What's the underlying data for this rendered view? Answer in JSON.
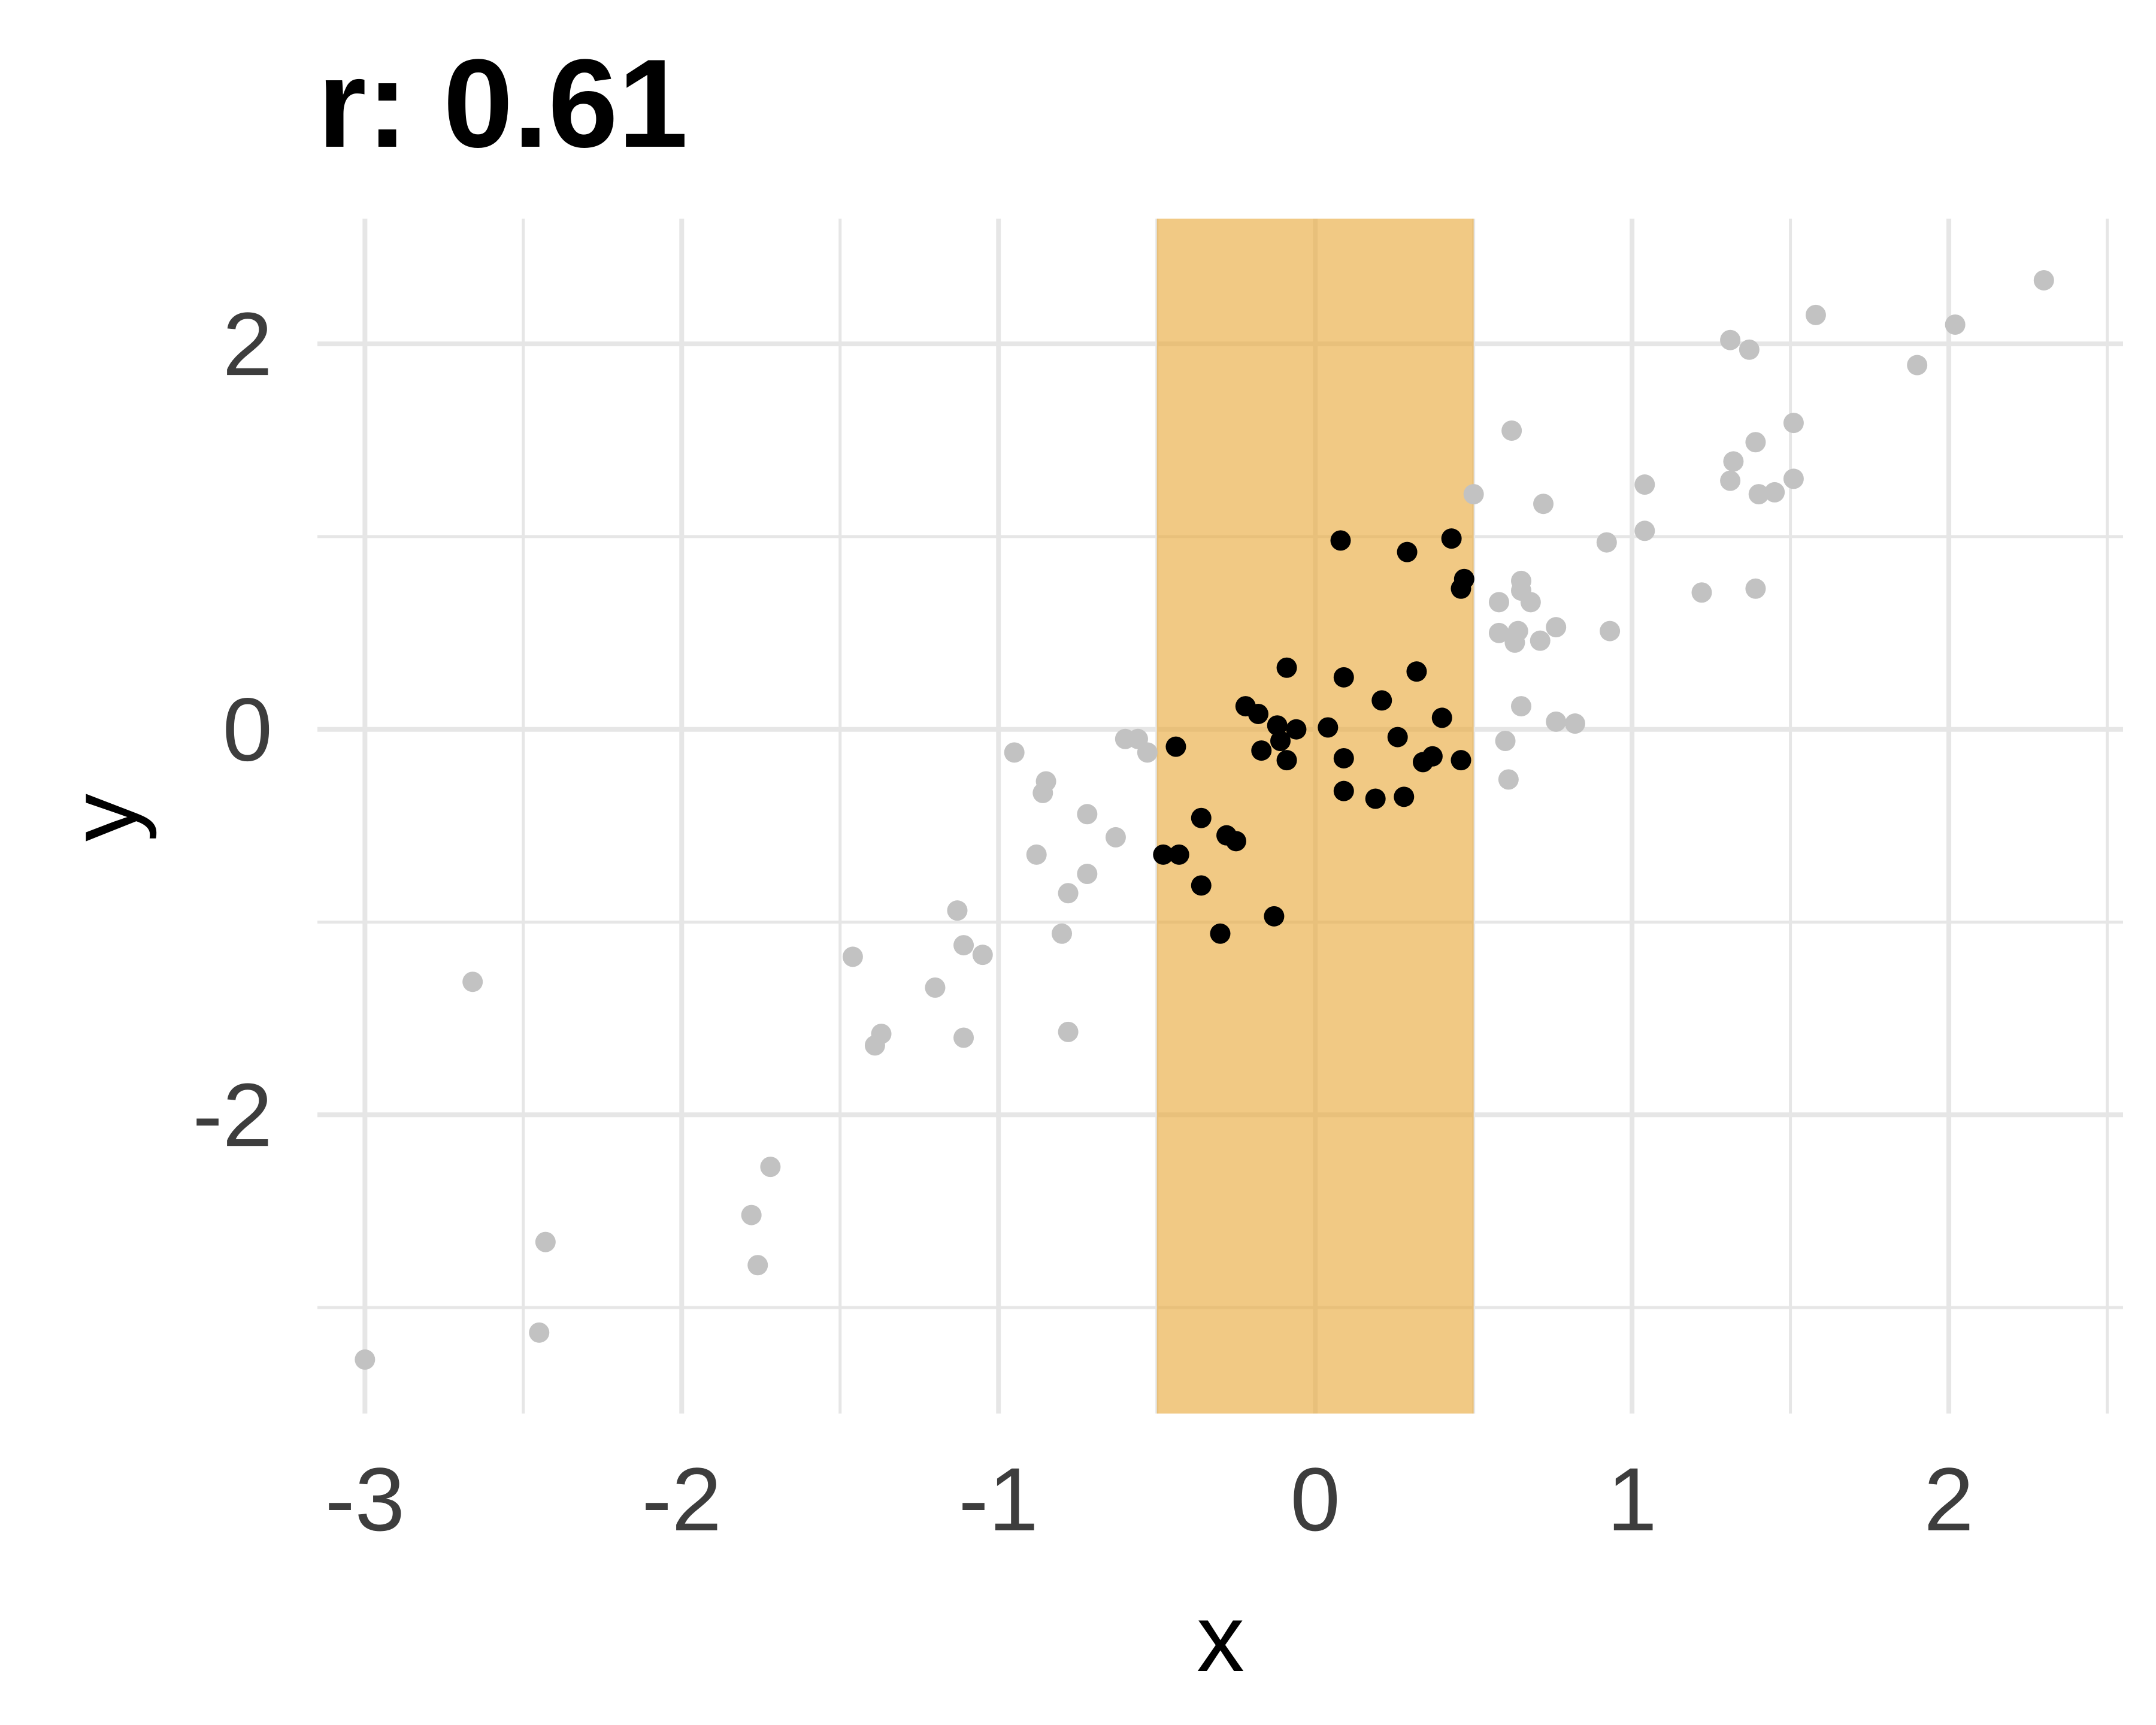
{
  "chart_data": {
    "type": "scatter",
    "title": "r: 0.61",
    "xlabel": "x",
    "ylabel": "y",
    "xlim": [
      -3.15,
      2.55
    ],
    "ylim": [
      -3.55,
      2.65
    ],
    "x_ticks": [
      -3,
      -2,
      -1,
      0,
      1,
      2
    ],
    "x_tick_labels": [
      "-3",
      "-2",
      "-1",
      "0",
      "1",
      "2"
    ],
    "y_ticks": [
      -2,
      0,
      2
    ],
    "y_tick_labels": [
      "-2",
      "0",
      "2"
    ],
    "grid": true,
    "highlight_band": {
      "x_min": -0.5,
      "x_max": 0.5,
      "color": "#e8a838"
    },
    "colors": {
      "highlighted_point": "#000000",
      "other_point": "#c2c2c2"
    },
    "highlighted_points": [
      {
        "x": 0.08,
        "y": 0.98
      },
      {
        "x": 0.29,
        "y": 0.92
      },
      {
        "x": 0.43,
        "y": 0.99
      },
      {
        "x": 0.47,
        "y": 0.78
      },
      {
        "x": 0.46,
        "y": 0.73
      },
      {
        "x": -0.09,
        "y": 0.32
      },
      {
        "x": 0.09,
        "y": 0.27
      },
      {
        "x": 0.32,
        "y": 0.3
      },
      {
        "x": 0.21,
        "y": 0.15
      },
      {
        "x": -0.22,
        "y": 0.12
      },
      {
        "x": -0.18,
        "y": 0.08
      },
      {
        "x": -0.12,
        "y": 0.02
      },
      {
        "x": -0.06,
        "y": 0.0
      },
      {
        "x": 0.04,
        "y": 0.01
      },
      {
        "x": 0.26,
        "y": -0.04
      },
      {
        "x": 0.4,
        "y": 0.06
      },
      {
        "x": -0.11,
        "y": -0.06
      },
      {
        "x": -0.44,
        "y": -0.09
      },
      {
        "x": -0.17,
        "y": -0.11
      },
      {
        "x": -0.09,
        "y": -0.16
      },
      {
        "x": 0.09,
        "y": -0.15
      },
      {
        "x": 0.34,
        "y": -0.17
      },
      {
        "x": 0.37,
        "y": -0.14
      },
      {
        "x": 0.46,
        "y": -0.16
      },
      {
        "x": 0.09,
        "y": -0.32
      },
      {
        "x": 0.19,
        "y": -0.36
      },
      {
        "x": 0.28,
        "y": -0.35
      },
      {
        "x": -0.36,
        "y": -0.46
      },
      {
        "x": -0.28,
        "y": -0.55
      },
      {
        "x": -0.25,
        "y": -0.58
      },
      {
        "x": -0.48,
        "y": -0.65
      },
      {
        "x": -0.43,
        "y": -0.65
      },
      {
        "x": -0.36,
        "y": -0.81
      },
      {
        "x": -0.13,
        "y": -0.97
      },
      {
        "x": -0.3,
        "y": -1.06
      }
    ],
    "other_points": [
      {
        "x": -3.0,
        "y": -3.27
      },
      {
        "x": -2.66,
        "y": -1.31
      },
      {
        "x": -2.45,
        "y": -3.13
      },
      {
        "x": -2.43,
        "y": -2.66
      },
      {
        "x": -1.78,
        "y": -2.52
      },
      {
        "x": -1.76,
        "y": -2.78
      },
      {
        "x": -1.72,
        "y": -2.27
      },
      {
        "x": -1.46,
        "y": -1.18
      },
      {
        "x": -1.39,
        "y": -1.64
      },
      {
        "x": -1.37,
        "y": -1.58
      },
      {
        "x": -1.2,
        "y": -1.34
      },
      {
        "x": -1.13,
        "y": -0.94
      },
      {
        "x": -1.11,
        "y": -1.12
      },
      {
        "x": -1.11,
        "y": -1.6
      },
      {
        "x": -1.05,
        "y": -1.17
      },
      {
        "x": -0.95,
        "y": -0.12
      },
      {
        "x": -0.88,
        "y": -0.65
      },
      {
        "x": -0.85,
        "y": -0.27
      },
      {
        "x": -0.86,
        "y": -0.33
      },
      {
        "x": -0.8,
        "y": -1.06
      },
      {
        "x": -0.78,
        "y": -0.85
      },
      {
        "x": -0.78,
        "y": -1.57
      },
      {
        "x": -0.72,
        "y": -0.44
      },
      {
        "x": -0.72,
        "y": -0.75
      },
      {
        "x": -0.63,
        "y": -0.56
      },
      {
        "x": -0.6,
        "y": -0.05
      },
      {
        "x": -0.56,
        "y": -0.05
      },
      {
        "x": -0.53,
        "y": -0.12
      },
      {
        "x": 0.5,
        "y": 1.22
      },
      {
        "x": 0.58,
        "y": 0.66
      },
      {
        "x": 0.58,
        "y": 0.5
      },
      {
        "x": 0.6,
        "y": -0.06
      },
      {
        "x": 0.61,
        "y": -0.26
      },
      {
        "x": 0.62,
        "y": 1.55
      },
      {
        "x": 0.63,
        "y": 0.45
      },
      {
        "x": 0.64,
        "y": 0.51
      },
      {
        "x": 0.65,
        "y": 0.77
      },
      {
        "x": 0.65,
        "y": 0.72
      },
      {
        "x": 0.65,
        "y": 0.12
      },
      {
        "x": 0.68,
        "y": 0.66
      },
      {
        "x": 0.71,
        "y": 0.46
      },
      {
        "x": 0.72,
        "y": 1.17
      },
      {
        "x": 0.76,
        "y": 0.53
      },
      {
        "x": 0.76,
        "y": 0.04
      },
      {
        "x": 0.82,
        "y": 0.03
      },
      {
        "x": 0.92,
        "y": 0.97
      },
      {
        "x": 0.93,
        "y": 0.51
      },
      {
        "x": 1.04,
        "y": 1.27
      },
      {
        "x": 1.04,
        "y": 1.03
      },
      {
        "x": 1.22,
        "y": 0.71
      },
      {
        "x": 1.31,
        "y": 2.02
      },
      {
        "x": 1.31,
        "y": 1.29
      },
      {
        "x": 1.32,
        "y": 1.39
      },
      {
        "x": 1.37,
        "y": 1.97
      },
      {
        "x": 1.39,
        "y": 1.49
      },
      {
        "x": 1.39,
        "y": 0.73
      },
      {
        "x": 1.4,
        "y": 1.22
      },
      {
        "x": 1.45,
        "y": 1.23
      },
      {
        "x": 1.51,
        "y": 1.59
      },
      {
        "x": 1.51,
        "y": 1.3
      },
      {
        "x": 1.58,
        "y": 2.15
      },
      {
        "x": 1.9,
        "y": 1.89
      },
      {
        "x": 2.02,
        "y": 2.1
      },
      {
        "x": 2.3,
        "y": 2.33
      }
    ]
  }
}
